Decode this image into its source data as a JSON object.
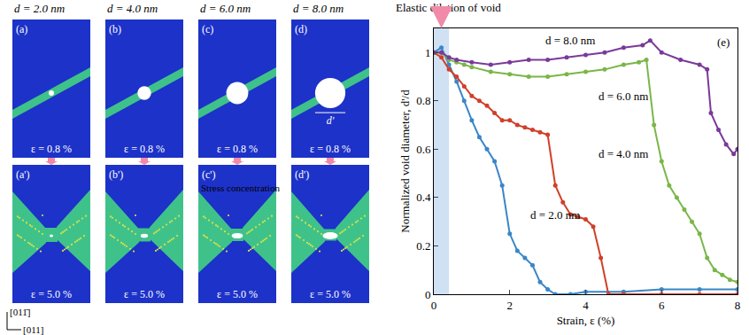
{
  "snapshots": {
    "columns": [
      {
        "heading": "d = 2.0 nm",
        "top": {
          "label": "(a)",
          "strain": "ε = 0.8 %"
        },
        "bottom": {
          "label": "(a')",
          "strain": "ε = 5.0 %"
        }
      },
      {
        "heading": "d = 4.0 nm",
        "top": {
          "label": "(b)",
          "strain": "ε = 0.8 %"
        },
        "bottom": {
          "label": "(b')",
          "strain": "ε = 5.0 %"
        }
      },
      {
        "heading": "d = 6.0 nm",
        "top": {
          "label": "(c)",
          "strain": "ε = 0.8 %"
        },
        "bottom": {
          "label": "(c')",
          "strain": "ε = 5.0 %",
          "note": "Stress concentration"
        }
      },
      {
        "heading": "d = 8.0 nm",
        "top": {
          "label": "(d)",
          "strain": "ε = 0.8 %",
          "note": "d'"
        },
        "bottom": {
          "label": "(d')",
          "strain": "ε = 5.0 %"
        }
      }
    ],
    "axes": [
      "[011̄]",
      "[011]"
    ]
  },
  "chart_data": {
    "type": "line",
    "panel_label": "(e)",
    "x_label": "Strain, ε (%)",
    "y_label": "Normalized void diameter, d'/d",
    "xlim": [
      0,
      8
    ],
    "xticks": [
      0,
      2,
      4,
      6,
      8
    ],
    "ylim": [
      0,
      1.1
    ],
    "yticks": [
      0,
      0.2,
      0.4,
      0.6,
      0.8,
      1
    ],
    "highlight": {
      "text": "Elastic dilation of void",
      "x": [
        0,
        0.4
      ]
    },
    "marker": "circle",
    "series": [
      {
        "name": "d = 2.0 nm",
        "color": "#3a86c8",
        "label_x": 2.5,
        "label_y": 0.33,
        "x": [
          0,
          0.2,
          0.4,
          0.6,
          0.8,
          1.0,
          1.2,
          1.4,
          1.6,
          1.8,
          2.0,
          2.2,
          2.4,
          2.6,
          2.8,
          3.0,
          3.2,
          3.6,
          4.0,
          5.0,
          6.0,
          7.0,
          8.0
        ],
        "values": [
          1,
          1.02,
          0.95,
          0.88,
          0.8,
          0.72,
          0.65,
          0.6,
          0.55,
          0.45,
          0.25,
          0.18,
          0.15,
          0.12,
          0.05,
          0.02,
          0,
          0,
          0.01,
          0.01,
          0.02,
          0.02,
          0.02
        ]
      },
      {
        "name": "d = 4.0 nm",
        "color": "#d0402a",
        "label_x": 4.3,
        "label_y": 0.58,
        "x": [
          0,
          0.2,
          0.4,
          0.6,
          0.8,
          1.0,
          1.2,
          1.4,
          1.6,
          1.8,
          2.0,
          2.2,
          2.4,
          2.6,
          2.8,
          3.0,
          3.2,
          3.4,
          3.6,
          3.8,
          4.0,
          4.2,
          4.4,
          4.6,
          5.0,
          6.0,
          7.0,
          8.0
        ],
        "values": [
          1,
          0.98,
          0.93,
          0.9,
          0.86,
          0.82,
          0.8,
          0.78,
          0.75,
          0.72,
          0.72,
          0.7,
          0.69,
          0.68,
          0.67,
          0.66,
          0.45,
          0.38,
          0.33,
          0.32,
          0.31,
          0.28,
          0.15,
          0,
          0,
          0,
          0,
          0
        ]
      },
      {
        "name": "d = 6.0 nm",
        "color": "#7ab648",
        "label_x": 4.3,
        "label_y": 0.82,
        "x": [
          0,
          0.2,
          0.4,
          0.6,
          0.8,
          1.0,
          1.5,
          2.0,
          2.5,
          3.0,
          3.5,
          4.0,
          4.5,
          5.0,
          5.4,
          5.6,
          5.8,
          6.0,
          6.2,
          6.4,
          6.6,
          6.8,
          7.0,
          7.2,
          7.4,
          7.6,
          7.8,
          8.0
        ],
        "values": [
          1,
          1.0,
          0.97,
          0.96,
          0.95,
          0.94,
          0.92,
          0.91,
          0.9,
          0.9,
          0.91,
          0.92,
          0.93,
          0.95,
          0.96,
          0.97,
          0.7,
          0.55,
          0.45,
          0.4,
          0.35,
          0.3,
          0.25,
          0.15,
          0.1,
          0.08,
          0.06,
          0.05
        ]
      },
      {
        "name": "d = 8.0 nm",
        "color": "#7a3a9a",
        "label_x": 2.9,
        "label_y": 1.05,
        "x": [
          0,
          0.2,
          0.4,
          0.6,
          1.0,
          1.5,
          2.0,
          2.5,
          3.0,
          3.5,
          4.0,
          4.5,
          5.0,
          5.5,
          5.7,
          6.0,
          6.5,
          7.0,
          7.2,
          7.3,
          7.5,
          7.7,
          7.9,
          8.0
        ],
        "values": [
          1,
          1.0,
          0.98,
          0.97,
          0.96,
          0.95,
          0.96,
          0.97,
          0.97,
          0.98,
          0.99,
          1.0,
          1.02,
          1.03,
          1.05,
          1.0,
          0.97,
          0.95,
          0.93,
          0.75,
          0.68,
          0.62,
          0.58,
          0.6
        ]
      }
    ]
  }
}
